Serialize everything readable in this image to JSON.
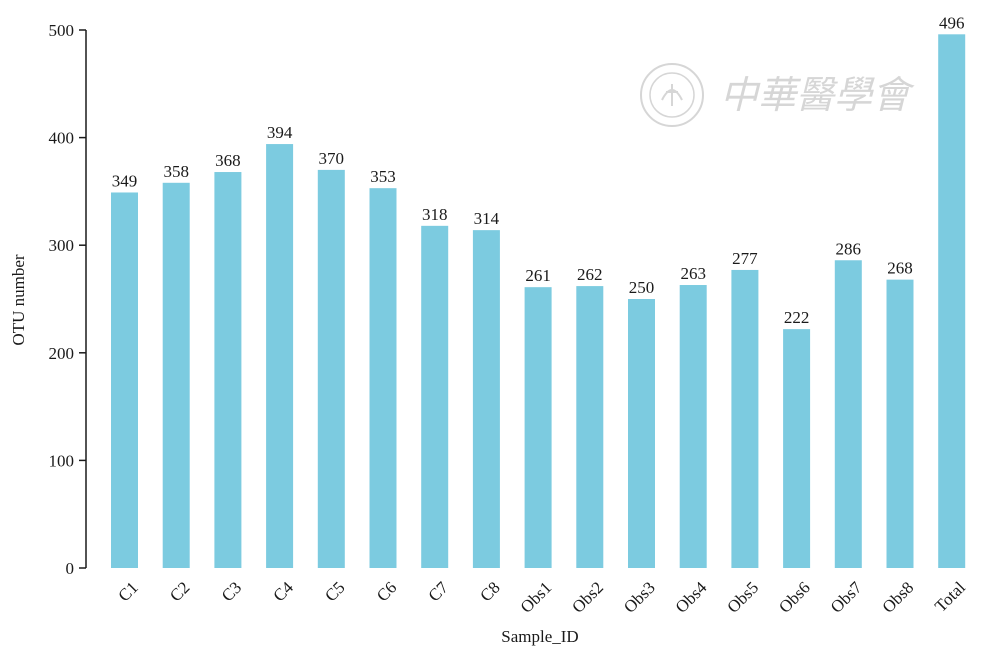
{
  "chart_data": {
    "type": "bar",
    "categories": [
      "C1",
      "C2",
      "C3",
      "C4",
      "C5",
      "C6",
      "C7",
      "C8",
      "Obs1",
      "Obs2",
      "Obs3",
      "Obs4",
      "Obs5",
      "Obs6",
      "Obs7",
      "Obs8",
      "Total"
    ],
    "values": [
      349,
      358,
      368,
      394,
      370,
      353,
      318,
      314,
      261,
      262,
      250,
      263,
      277,
      222,
      286,
      268,
      496
    ],
    "xlabel": "Sample_ID",
    "ylabel": "OTU number",
    "ylim": [
      0,
      500
    ],
    "yticks": [
      0,
      100,
      200,
      300,
      400,
      500
    ],
    "bar_color": "#7ccbe0",
    "grid": false,
    "legend": "none"
  },
  "watermark": {
    "text": "中華醫學會"
  }
}
